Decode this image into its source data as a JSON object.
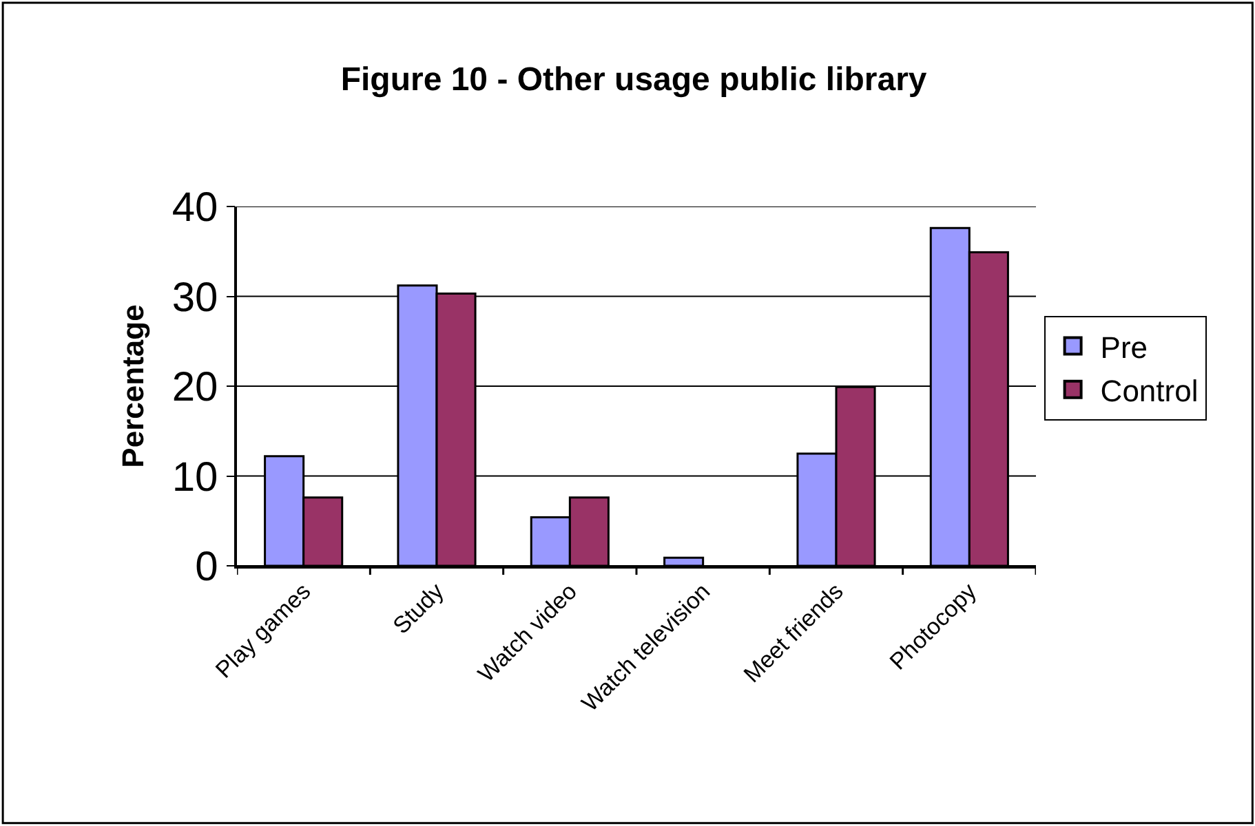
{
  "chart_data": {
    "type": "bar",
    "title": "Figure 10 - Other usage public library",
    "ylabel": "Percentage",
    "categories": [
      "Play games",
      "Study",
      "Watch video",
      "Watch television",
      "Meet friends",
      "Photocopy"
    ],
    "series": [
      {
        "name": "Pre",
        "color": "#9999ff",
        "values": [
          12.2,
          31.2,
          5.4,
          0.9,
          12.5,
          37.6
        ]
      },
      {
        "name": "Control",
        "color": "#993366",
        "values": [
          7.6,
          30.3,
          7.6,
          null,
          19.9,
          34.9
        ]
      }
    ],
    "ylim": [
      0,
      40
    ],
    "yticks": [
      0,
      10,
      20,
      30,
      40
    ],
    "grid": "y",
    "legend": "right"
  }
}
